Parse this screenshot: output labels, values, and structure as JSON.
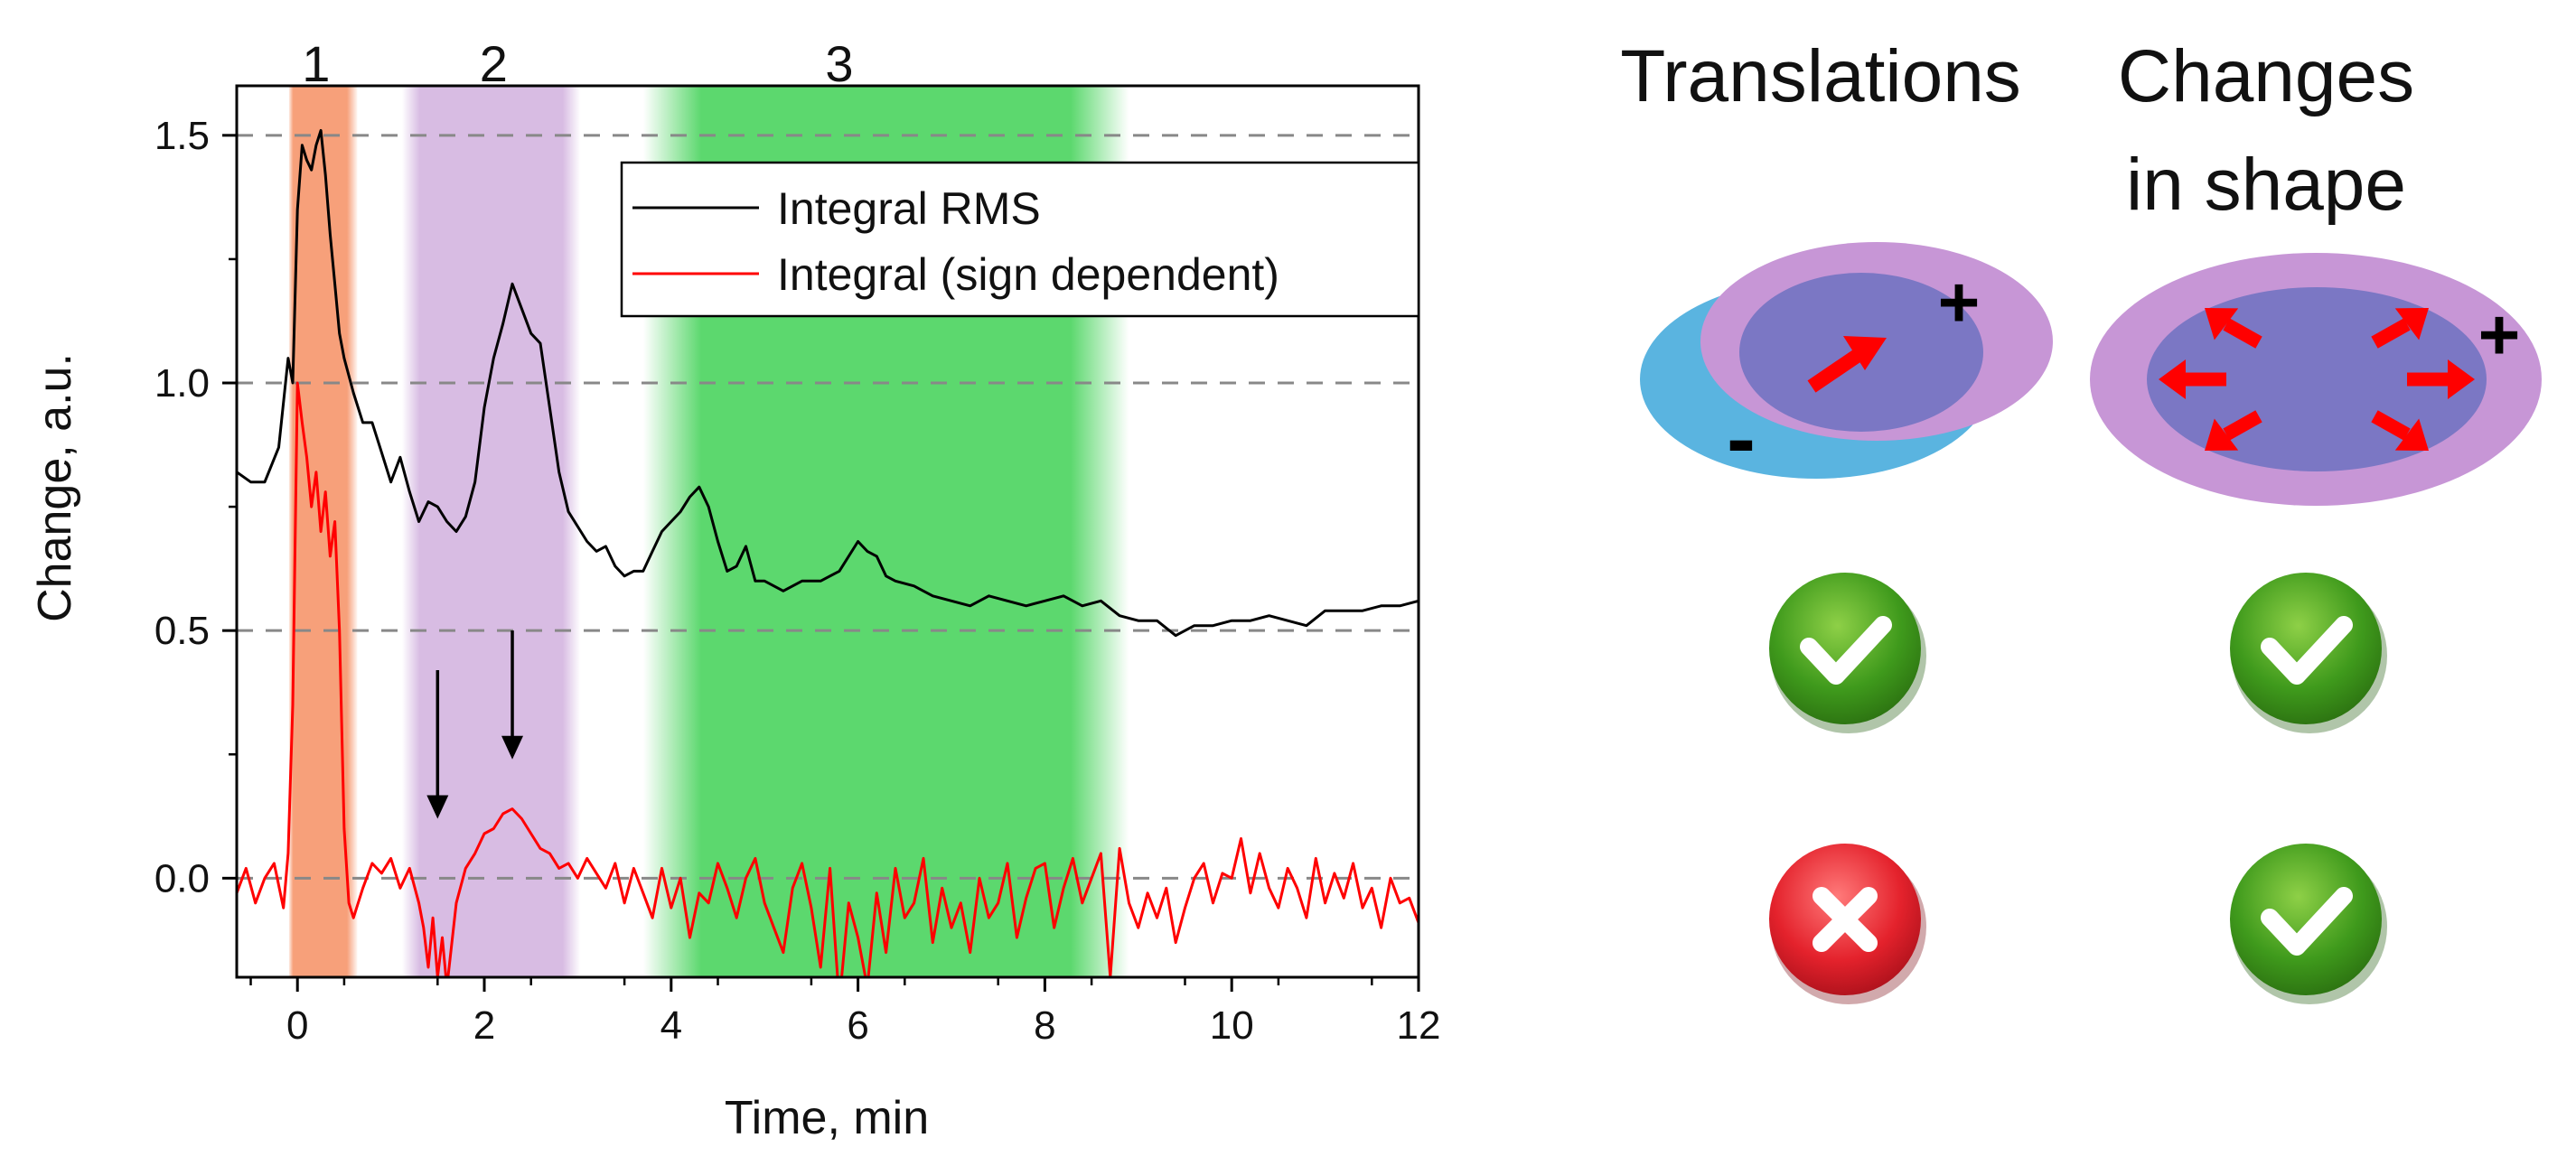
{
  "chart_data": {
    "type": "line",
    "xlabel": "Time, min",
    "ylabel": "Change, a.u.",
    "xlim": [
      -0.65,
      12
    ],
    "ylim": [
      -0.2,
      1.6
    ],
    "x_ticks": [
      {
        "value": 0,
        "label": "0"
      },
      {
        "value": 2,
        "label": "2"
      },
      {
        "value": 4,
        "label": "4"
      },
      {
        "value": 6,
        "label": "6"
      },
      {
        "value": 8,
        "label": "8"
      },
      {
        "value": 10,
        "label": "10"
      },
      {
        "value": 12,
        "label": "12"
      }
    ],
    "y_ticks": [
      {
        "value": 0.0,
        "label": "0.0"
      },
      {
        "value": 0.5,
        "label": "0.5"
      },
      {
        "value": 1.0,
        "label": "1.0"
      },
      {
        "value": 1.5,
        "label": "1.5"
      }
    ],
    "grid": "horizontal dashed",
    "legend": {
      "placement": "top-right",
      "entries": [
        {
          "label": "Integral RMS",
          "color": "#000000"
        },
        {
          "label": "Integral (sign dependent)",
          "color": "#ff0000"
        }
      ]
    },
    "regions": [
      {
        "label": "1",
        "start": -0.05,
        "end": 0.6,
        "color": "#f7a07a"
      },
      {
        "label": "2",
        "start": 1.3,
        "end": 2.85,
        "color": "#d8bce3"
      },
      {
        "label": "3",
        "start": 4.05,
        "end": 8.55,
        "color": "#5cd86e"
      }
    ],
    "arrows": [
      {
        "x": 1.5,
        "from_y": 0.42,
        "to_y": 0.12
      },
      {
        "x": 2.3,
        "from_y": 0.5,
        "to_y": 0.24
      }
    ],
    "series": [
      {
        "name": "Integral RMS",
        "color": "#000000",
        "x": [
          -0.65,
          -0.5,
          -0.35,
          -0.2,
          -0.1,
          -0.05,
          0.0,
          0.05,
          0.1,
          0.15,
          0.2,
          0.25,
          0.3,
          0.35,
          0.4,
          0.45,
          0.5,
          0.6,
          0.7,
          0.8,
          0.9,
          1.0,
          1.1,
          1.2,
          1.3,
          1.4,
          1.5,
          1.6,
          1.7,
          1.8,
          1.9,
          2.0,
          2.1,
          2.2,
          2.3,
          2.4,
          2.5,
          2.6,
          2.7,
          2.8,
          2.9,
          3.0,
          3.1,
          3.2,
          3.3,
          3.4,
          3.5,
          3.6,
          3.7,
          3.8,
          3.9,
          4.0,
          4.1,
          4.2,
          4.3,
          4.4,
          4.5,
          4.6,
          4.7,
          4.8,
          4.9,
          5.0,
          5.2,
          5.4,
          5.6,
          5.8,
          6.0,
          6.1,
          6.2,
          6.3,
          6.4,
          6.6,
          6.8,
          7.0,
          7.2,
          7.4,
          7.6,
          7.8,
          8.0,
          8.2,
          8.4,
          8.6,
          8.8,
          9.0,
          9.2,
          9.4,
          9.6,
          9.8,
          10.0,
          10.2,
          10.4,
          10.6,
          10.8,
          11.0,
          11.2,
          11.4,
          11.6,
          11.8,
          12.0
        ],
        "values": [
          0.82,
          0.8,
          0.8,
          0.87,
          1.05,
          1.0,
          1.35,
          1.48,
          1.45,
          1.43,
          1.48,
          1.51,
          1.42,
          1.3,
          1.2,
          1.1,
          1.05,
          0.98,
          0.92,
          0.92,
          0.86,
          0.8,
          0.85,
          0.78,
          0.72,
          0.76,
          0.75,
          0.72,
          0.7,
          0.73,
          0.8,
          0.95,
          1.05,
          1.12,
          1.2,
          1.15,
          1.1,
          1.08,
          0.95,
          0.82,
          0.74,
          0.71,
          0.68,
          0.66,
          0.67,
          0.63,
          0.61,
          0.62,
          0.62,
          0.66,
          0.7,
          0.72,
          0.74,
          0.77,
          0.79,
          0.75,
          0.68,
          0.62,
          0.63,
          0.67,
          0.6,
          0.6,
          0.58,
          0.6,
          0.6,
          0.62,
          0.68,
          0.66,
          0.65,
          0.61,
          0.6,
          0.59,
          0.57,
          0.56,
          0.55,
          0.57,
          0.56,
          0.55,
          0.56,
          0.57,
          0.55,
          0.56,
          0.53,
          0.52,
          0.52,
          0.49,
          0.51,
          0.51,
          0.52,
          0.52,
          0.53,
          0.52,
          0.51,
          0.54,
          0.54,
          0.54,
          0.55,
          0.55,
          0.56
        ]
      },
      {
        "name": "Integral (sign dependent)",
        "color": "#ff0000",
        "x": [
          -0.65,
          -0.55,
          -0.45,
          -0.35,
          -0.25,
          -0.15,
          -0.1,
          -0.05,
          0.0,
          0.05,
          0.1,
          0.15,
          0.2,
          0.25,
          0.3,
          0.35,
          0.4,
          0.45,
          0.5,
          0.55,
          0.6,
          0.7,
          0.8,
          0.9,
          1.0,
          1.1,
          1.2,
          1.3,
          1.35,
          1.4,
          1.45,
          1.5,
          1.55,
          1.6,
          1.7,
          1.8,
          1.9,
          2.0,
          2.1,
          2.2,
          2.3,
          2.4,
          2.5,
          2.6,
          2.7,
          2.8,
          2.9,
          3.0,
          3.1,
          3.2,
          3.3,
          3.4,
          3.5,
          3.6,
          3.7,
          3.8,
          3.9,
          4.0,
          4.1,
          4.2,
          4.3,
          4.4,
          4.5,
          4.6,
          4.7,
          4.8,
          4.9,
          5.0,
          5.1,
          5.2,
          5.3,
          5.4,
          5.5,
          5.6,
          5.7,
          5.8,
          5.9,
          6.0,
          6.1,
          6.2,
          6.3,
          6.4,
          6.5,
          6.6,
          6.7,
          6.8,
          6.9,
          7.0,
          7.1,
          7.2,
          7.3,
          7.4,
          7.5,
          7.6,
          7.7,
          7.8,
          7.9,
          8.0,
          8.1,
          8.2,
          8.3,
          8.4,
          8.5,
          8.6,
          8.7,
          8.8,
          8.9,
          9.0,
          9.1,
          9.2,
          9.3,
          9.4,
          9.5,
          9.6,
          9.7,
          9.8,
          9.9,
          10.0,
          10.1,
          10.2,
          10.3,
          10.4,
          10.5,
          10.6,
          10.7,
          10.8,
          10.9,
          11.0,
          11.1,
          11.2,
          11.3,
          11.4,
          11.5,
          11.6,
          11.7,
          11.8,
          11.9,
          12.0
        ],
        "values": [
          -0.03,
          0.02,
          -0.05,
          0.0,
          0.03,
          -0.06,
          0.05,
          0.35,
          1.0,
          0.92,
          0.85,
          0.75,
          0.82,
          0.7,
          0.78,
          0.65,
          0.72,
          0.5,
          0.1,
          -0.05,
          -0.08,
          -0.02,
          0.03,
          0.01,
          0.04,
          -0.02,
          0.02,
          -0.05,
          -0.1,
          -0.18,
          -0.08,
          -0.2,
          -0.12,
          -0.22,
          -0.05,
          0.02,
          0.05,
          0.09,
          0.1,
          0.13,
          0.14,
          0.12,
          0.09,
          0.06,
          0.05,
          0.02,
          0.03,
          0.0,
          0.04,
          0.01,
          -0.02,
          0.03,
          -0.05,
          0.02,
          -0.03,
          -0.08,
          0.02,
          -0.06,
          0.0,
          -0.12,
          -0.03,
          -0.05,
          0.03,
          -0.02,
          -0.08,
          0.0,
          0.04,
          -0.05,
          -0.1,
          -0.15,
          -0.02,
          0.03,
          -0.06,
          -0.18,
          0.02,
          -0.25,
          -0.05,
          -0.12,
          -0.22,
          -0.03,
          -0.15,
          0.02,
          -0.08,
          -0.05,
          0.04,
          -0.13,
          -0.02,
          -0.1,
          -0.05,
          -0.15,
          0.0,
          -0.08,
          -0.05,
          0.03,
          -0.12,
          -0.04,
          0.02,
          0.03,
          -0.1,
          -0.02,
          0.04,
          -0.05,
          0.0,
          0.05,
          -0.2,
          0.06,
          -0.05,
          -0.1,
          -0.03,
          -0.08,
          -0.02,
          -0.13,
          -0.06,
          0.0,
          0.03,
          -0.05,
          0.01,
          0.0,
          0.08,
          -0.03,
          0.05,
          -0.02,
          -0.06,
          0.02,
          -0.02,
          -0.08,
          0.04,
          -0.05,
          0.01,
          -0.04,
          0.03,
          -0.06,
          -0.02,
          -0.1,
          0.0,
          -0.05,
          -0.04,
          -0.09
        ]
      }
    ]
  },
  "comparison": {
    "col_translations": "Translations",
    "col_shape_line1": "Changes",
    "col_shape_line2": "in shape",
    "plus_sign": "+",
    "minus_sign": "-",
    "row1": {
      "translations": "check",
      "shape": "check"
    },
    "row2": {
      "translations": "cross",
      "shape": "check"
    },
    "colors": {
      "ellipse_blue": "#5ab4e0",
      "ellipse_purple": "#c796d6",
      "overlap": "#7b77c4",
      "arrow_red": "#ff0000",
      "check_green": "#3f9a1c",
      "cross_red": "#e4222c"
    }
  }
}
